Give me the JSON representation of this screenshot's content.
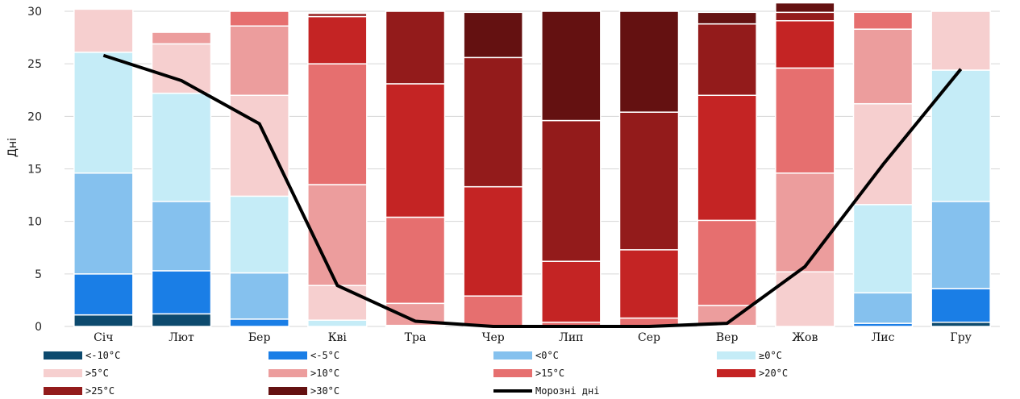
{
  "chart_data": {
    "type": "bar",
    "stacked": true,
    "ylabel": "Дні",
    "ylim": [
      0,
      30
    ],
    "yticks": [
      0,
      5,
      10,
      15,
      20,
      25,
      30
    ],
    "grid": true,
    "legend_position": "bottom",
    "categories": [
      "Січ",
      "Лют",
      "Бер",
      "Кві",
      "Тра",
      "Чер",
      "Лип",
      "Сер",
      "Вер",
      "Жов",
      "Лис",
      "Гру"
    ],
    "series": [
      {
        "name": "<-10°C",
        "color": "#0d4a6e",
        "values": [
          1.1,
          1.2,
          0,
          0,
          0,
          0,
          0,
          0,
          0,
          0,
          0,
          0.4
        ]
      },
      {
        "name": "<-5°C",
        "color": "#1a7ee6",
        "values": [
          3.9,
          4.1,
          0.7,
          0,
          0,
          0,
          0,
          0,
          0,
          0,
          0.3,
          3.2
        ]
      },
      {
        "name": "<0°C",
        "color": "#85c1ee",
        "values": [
          9.6,
          6.6,
          4.4,
          0,
          0,
          0,
          0,
          0,
          0,
          0,
          2.9,
          8.3
        ]
      },
      {
        "name": "≥0°C",
        "color": "#c5ecf7",
        "values": [
          11.5,
          10.3,
          7.3,
          0.6,
          0,
          0,
          0,
          0,
          0,
          0,
          8.4,
          12.5
        ]
      },
      {
        "name": ">5°C",
        "color": "#f6cfcf",
        "values": [
          4.1,
          4.7,
          9.6,
          3.3,
          0.1,
          0,
          0,
          0,
          0.1,
          5.2,
          9.6,
          5.6
        ]
      },
      {
        "name": ">10°C",
        "color": "#ec9d9d",
        "values": [
          0,
          1.1,
          6.6,
          9.6,
          2.1,
          0,
          0,
          0,
          1.9,
          9.4,
          7.1,
          0
        ]
      },
      {
        "name": ">15°C",
        "color": "#e66f6f",
        "values": [
          0,
          0,
          1.4,
          11.5,
          8.2,
          2.9,
          0.4,
          0.8,
          8.1,
          10.0,
          1.6,
          0
        ]
      },
      {
        "name": ">20°C",
        "color": "#c42424",
        "values": [
          0,
          0,
          0,
          4.5,
          12.7,
          10.4,
          5.8,
          6.5,
          11.9,
          4.5,
          0,
          0
        ]
      },
      {
        "name": ">25°C",
        "color": "#931b1b",
        "values": [
          0,
          0,
          0,
          0.3,
          6.9,
          12.3,
          13.4,
          13.1,
          6.8,
          0.8,
          0,
          0
        ]
      },
      {
        "name": ">30°C",
        "color": "#641111",
        "values": [
          0,
          0,
          0,
          0,
          0,
          4.3,
          10.4,
          9.6,
          1.1,
          0.9,
          0,
          0
        ]
      }
    ],
    "line": {
      "name": "Морозні дні",
      "color": "#000000",
      "values": [
        25.8,
        23.4,
        19.3,
        3.9,
        0.5,
        0,
        0,
        0,
        0.3,
        5.7,
        15.4,
        24.5
      ]
    }
  }
}
